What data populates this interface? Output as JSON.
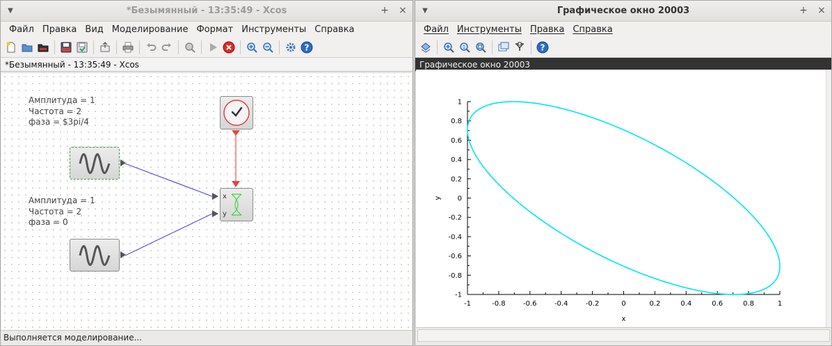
{
  "xcos": {
    "title": "*Безымянный - 13:35:49 - Xcos",
    "tab_title": "*Безымянный - 13:35:49 - Xcos",
    "menu": [
      "Файл",
      "Правка",
      "Вид",
      "Моделирование",
      "Формат",
      "Инструменты",
      "Справка"
    ],
    "status": "Выполняется моделирование...",
    "label1": {
      "line1": "Амплитуда = 1",
      "line2": "Частота = 2",
      "line3": "фаза = $3pi/4"
    },
    "label2": {
      "line1": "Амплитуда = 1",
      "line2": "Частота = 2",
      "line3": "фаза = 0"
    },
    "scope_ports": {
      "x": "x",
      "y": "y"
    }
  },
  "graph": {
    "title": "Графическое окно 20003",
    "tab_title": "Графическое окно 20003",
    "menu": [
      "Файл",
      "Инструменты",
      "Правка",
      "Справка"
    ]
  },
  "chart_data": {
    "type": "line",
    "title": "",
    "xlabel": "x",
    "ylabel": "y",
    "xlim": [
      -1,
      1
    ],
    "ylim": [
      -1,
      1
    ],
    "xticks": [
      "-1",
      "-0.8",
      "-0.6",
      "-0.4",
      "-0.2",
      "0",
      "0.2",
      "0.4",
      "0.6",
      "0.8",
      "1"
    ],
    "yticks": [
      "1",
      "0.8",
      "0.6",
      "0.4",
      "0.2",
      "0",
      "-0.2",
      "-0.4",
      "-0.6",
      "-0.8",
      "-1"
    ],
    "grid": false,
    "series": [
      {
        "color": "#00e5ee",
        "param": {
          "x": "sin(t + 3*pi/4)",
          "y": "sin(t)"
        }
      }
    ]
  },
  "colors": {
    "curve": "#00e5ee",
    "clock_link": "#f05050",
    "data_link": "#5050e0"
  }
}
